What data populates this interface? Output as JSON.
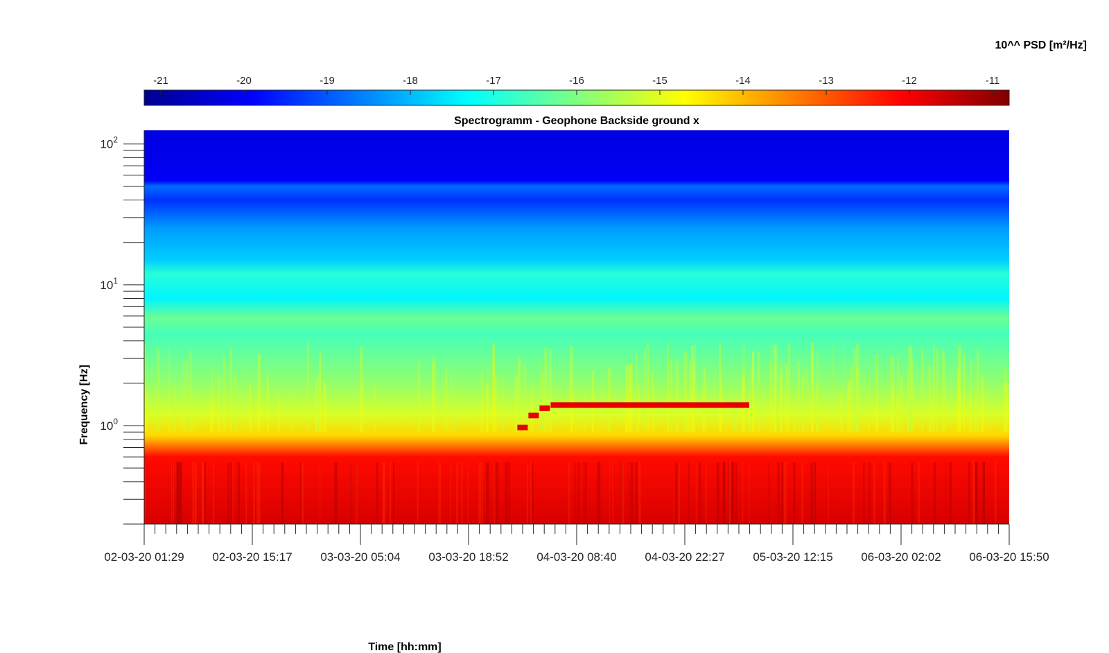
{
  "chart_data": {
    "type": "heatmap",
    "title": "Spectrogramm - Geophone Backside ground x",
    "xlabel": "Time [hh:mm]",
    "ylabel": "Frequency [Hz]",
    "x_tick_labels": [
      "02-03-20 01:29",
      "02-03-20 15:17",
      "03-03-20 05:04",
      "03-03-20 18:52",
      "04-03-20 08:40",
      "04-03-20 22:27",
      "05-03-20 12:15",
      "06-03-20 02:02",
      "06-03-20 15:50"
    ],
    "y_scale": "log",
    "y_tick_labels": [
      {
        "base": "10",
        "exp": "2",
        "value": 100
      },
      {
        "base": "10",
        "exp": "1",
        "value": 10
      },
      {
        "base": "10",
        "exp": "0",
        "value": 1
      }
    ],
    "ylim": [
      0.2,
      125
    ],
    "colorbar": {
      "label": "10^^ PSD [m²/Hz]",
      "range": [
        -21.2,
        -10.8
      ],
      "ticks": [
        "-21",
        "-20",
        "-19",
        "-18",
        "-17",
        "-16",
        "-15",
        "-14",
        "-13",
        "-12",
        "-11"
      ],
      "colormap": "jet"
    },
    "psd_log10_profile": [
      {
        "freq_hz": 125,
        "value": -20.2
      },
      {
        "freq_hz": 55,
        "value": -20.0
      },
      {
        "freq_hz": 50,
        "value": -18.8
      },
      {
        "freq_hz": 40,
        "value": -19.4
      },
      {
        "freq_hz": 25,
        "value": -18.3
      },
      {
        "freq_hz": 15,
        "value": -17.8
      },
      {
        "freq_hz": 12,
        "value": -16.9
      },
      {
        "freq_hz": 8,
        "value": -17.4
      },
      {
        "freq_hz": 5.8,
        "value": -16.2
      },
      {
        "freq_hz": 4.5,
        "value": -16.6
      },
      {
        "freq_hz": 2,
        "value": -15.8
      },
      {
        "freq_hz": 1.2,
        "value": -15.1
      },
      {
        "freq_hz": 0.85,
        "value": -14.3
      },
      {
        "freq_hz": 0.6,
        "value": -12.2
      },
      {
        "freq_hz": 0.2,
        "value": -11.7
      }
    ],
    "annotations": [
      {
        "label": "stepped red line",
        "freq_hz": 1.4,
        "start": "04-03-20 05:20",
        "end": "05-03-20 06:40"
      }
    ]
  }
}
